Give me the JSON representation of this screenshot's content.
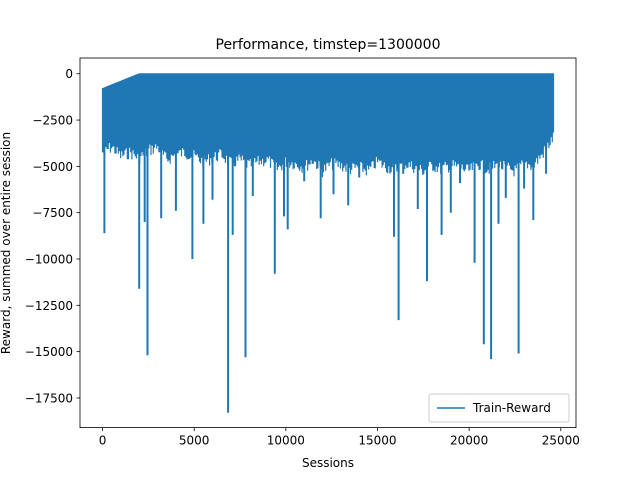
{
  "chart_data": {
    "type": "line",
    "title": "Performance, timstep=1300000",
    "xlabel": "Sessions",
    "ylabel": "Reward, summed over entire session",
    "xlim": [
      -1230,
      25830
    ],
    "ylim": [
      -19100,
      850
    ],
    "xticks": [
      0,
      5000,
      10000,
      15000,
      20000,
      25000
    ],
    "xtick_labels": [
      "0",
      "5000",
      "10000",
      "15000",
      "20000",
      "25000"
    ],
    "yticks": [
      0,
      -2500,
      -5000,
      -7500,
      -10000,
      -12500,
      -15000,
      -17500
    ],
    "ytick_labels": [
      "0",
      "−2500",
      "−5000",
      "−7500",
      "−10000",
      "−12500",
      "−15000",
      "−17500"
    ],
    "grid": false,
    "legend_position": "lower right",
    "color": "#1f77b4",
    "series": [
      {
        "name": "Train-Reward",
        "x_start": 0,
        "x_end": 24600,
        "upper_envelope": [
          [
            0,
            -800
          ],
          [
            2000,
            0
          ],
          [
            5000,
            0
          ],
          [
            10000,
            0
          ],
          [
            15000,
            0
          ],
          [
            20000,
            0
          ],
          [
            24600,
            0
          ]
        ],
        "lower_envelope": [
          [
            0,
            -3900
          ],
          [
            500,
            -3600
          ],
          [
            1000,
            -4100
          ],
          [
            1500,
            -3900
          ],
          [
            2000,
            -4200
          ],
          [
            2500,
            -3800
          ],
          [
            3000,
            -3600
          ],
          [
            3500,
            -4300
          ],
          [
            4000,
            -4000
          ],
          [
            4500,
            -3900
          ],
          [
            5000,
            -4100
          ],
          [
            5500,
            -4400
          ],
          [
            6000,
            -4200
          ],
          [
            6500,
            -4000
          ],
          [
            7000,
            -4500
          ],
          [
            7500,
            -4300
          ],
          [
            8000,
            -4600
          ],
          [
            8500,
            -4400
          ],
          [
            9000,
            -4300
          ],
          [
            9500,
            -4800
          ],
          [
            10000,
            -4400
          ],
          [
            10500,
            -4500
          ],
          [
            11000,
            -4700
          ],
          [
            11500,
            -4300
          ],
          [
            12000,
            -4900
          ],
          [
            12500,
            -4500
          ],
          [
            13000,
            -4600
          ],
          [
            13500,
            -4800
          ],
          [
            14000,
            -4700
          ],
          [
            14500,
            -4900
          ],
          [
            15000,
            -4400
          ],
          [
            15500,
            -4700
          ],
          [
            16000,
            -4800
          ],
          [
            16500,
            -4500
          ],
          [
            17000,
            -4700
          ],
          [
            17500,
            -4900
          ],
          [
            18000,
            -4600
          ],
          [
            18500,
            -4800
          ],
          [
            19000,
            -4600
          ],
          [
            19500,
            -4700
          ],
          [
            20000,
            -4900
          ],
          [
            20500,
            -4500
          ],
          [
            21000,
            -4800
          ],
          [
            21500,
            -4600
          ],
          [
            22000,
            -4700
          ],
          [
            22500,
            -4900
          ],
          [
            23000,
            -4500
          ],
          [
            23500,
            -4600
          ],
          [
            24000,
            -4000
          ],
          [
            24600,
            -3100
          ]
        ],
        "spikes": [
          [
            100,
            -8600
          ],
          [
            2000,
            -11600
          ],
          [
            2300,
            -8000
          ],
          [
            2450,
            -15200
          ],
          [
            3200,
            -7800
          ],
          [
            4000,
            -7400
          ],
          [
            4900,
            -10000
          ],
          [
            5500,
            -8100
          ],
          [
            6000,
            -6800
          ],
          [
            6850,
            -18300
          ],
          [
            7100,
            -8700
          ],
          [
            7800,
            -15300
          ],
          [
            8200,
            -6600
          ],
          [
            9400,
            -10800
          ],
          [
            9900,
            -7700
          ],
          [
            10100,
            -8400
          ],
          [
            11000,
            -5800
          ],
          [
            11900,
            -7800
          ],
          [
            12600,
            -6500
          ],
          [
            13400,
            -7100
          ],
          [
            14000,
            -5600
          ],
          [
            15700,
            -5300
          ],
          [
            15900,
            -8800
          ],
          [
            16150,
            -13300
          ],
          [
            16400,
            -5400
          ],
          [
            17200,
            -7300
          ],
          [
            17700,
            -11200
          ],
          [
            18100,
            -5200
          ],
          [
            18500,
            -8700
          ],
          [
            19000,
            -7500
          ],
          [
            19500,
            -5900
          ],
          [
            20300,
            -10200
          ],
          [
            20800,
            -14600
          ],
          [
            21200,
            -15400
          ],
          [
            21600,
            -8100
          ],
          [
            22000,
            -6700
          ],
          [
            22300,
            -4800
          ],
          [
            22700,
            -15100
          ],
          [
            23000,
            -6200
          ],
          [
            23500,
            -7900
          ],
          [
            24200,
            -5400
          ]
        ]
      }
    ]
  }
}
